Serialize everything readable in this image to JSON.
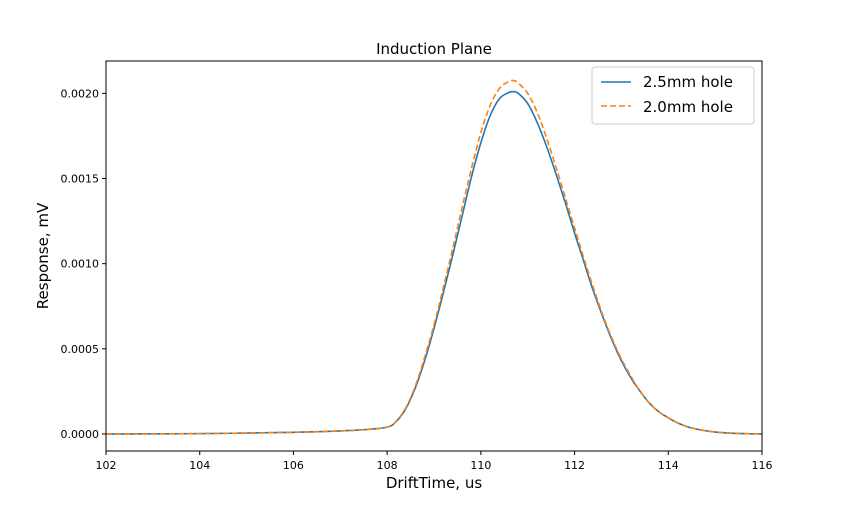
{
  "chart_data": {
    "type": "line",
    "title": "Induction Plane",
    "xlabel": "DriftTime, us",
    "ylabel": "Response, mV",
    "xlim": [
      102,
      116
    ],
    "ylim": [
      -0.0001,
      0.00219
    ],
    "x_ticks": [
      102,
      104,
      106,
      108,
      110,
      112,
      114,
      116
    ],
    "x_tick_labels": [
      "102",
      "104",
      "106",
      "108",
      "110",
      "112",
      "114",
      "116"
    ],
    "y_ticks": [
      0.0,
      0.0005,
      0.001,
      0.0015,
      0.002
    ],
    "y_tick_labels": [
      "0.0000",
      "0.0005",
      "0.0010",
      "0.0015",
      "0.0020"
    ],
    "grid": false,
    "legend_position": "top-right",
    "series": [
      {
        "name": "2.5mm hole",
        "color": "#1f77b4",
        "style": "solid",
        "x": [
          102,
          104,
          106,
          107,
          107.5,
          108,
          108.2,
          108.4,
          108.6,
          108.8,
          109,
          109.2,
          109.4,
          109.6,
          109.8,
          110,
          110.2,
          110.4,
          110.6,
          110.7,
          110.8,
          111,
          111.2,
          111.4,
          111.6,
          111.8,
          112,
          112.2,
          112.4,
          112.6,
          112.8,
          113,
          113.2,
          113.4,
          113.6,
          113.8,
          114,
          114.2,
          114.5,
          115,
          115.5,
          116
        ],
        "y": [
          0.0,
          2e-06,
          1e-05,
          1.8e-05,
          2.5e-05,
          4e-05,
          7.5e-05,
          0.00015,
          0.00027,
          0.00043,
          0.00062,
          0.00083,
          0.00105,
          0.00128,
          0.00151,
          0.00171,
          0.00187,
          0.00197,
          0.002005,
          0.00201,
          0.002,
          0.00194,
          0.00183,
          0.00169,
          0.00153,
          0.00136,
          0.00118,
          0.00101,
          0.00084,
          0.00069,
          0.00055,
          0.00043,
          0.00033,
          0.00025,
          0.00018,
          0.00013,
          9.5e-05,
          6.5e-05,
          3.5e-05,
          1.1e-05,
          3e-06,
          0.0
        ]
      },
      {
        "name": "2.0mm hole",
        "color": "#ff7f0e",
        "style": "dashed",
        "x": [
          102,
          104,
          106,
          107,
          107.5,
          108,
          108.2,
          108.4,
          108.6,
          108.8,
          109,
          109.2,
          109.4,
          109.6,
          109.8,
          110,
          110.2,
          110.4,
          110.6,
          110.7,
          110.8,
          111,
          111.2,
          111.4,
          111.6,
          111.8,
          112,
          112.2,
          112.4,
          112.6,
          112.8,
          113,
          113.2,
          113.4,
          113.6,
          113.8,
          114,
          114.2,
          114.5,
          115,
          115.5,
          116
        ],
        "y": [
          0.0,
          2e-06,
          1e-05,
          1.8e-05,
          2.5e-05,
          4e-05,
          7.7e-05,
          0.000155,
          0.00028,
          0.00045,
          0.00064,
          0.00086,
          0.00109,
          0.00133,
          0.00156,
          0.00177,
          0.00193,
          0.00203,
          0.00207,
          0.002075,
          0.00206,
          0.002,
          0.00189,
          0.00174,
          0.00157,
          0.00139,
          0.00121,
          0.00103,
          0.00086,
          0.0007,
          0.00056,
          0.00044,
          0.00034,
          0.00025,
          0.00018,
          0.00013,
          9.5e-05,
          6.5e-05,
          3.5e-05,
          1.1e-05,
          3e-06,
          0.0
        ]
      }
    ]
  }
}
